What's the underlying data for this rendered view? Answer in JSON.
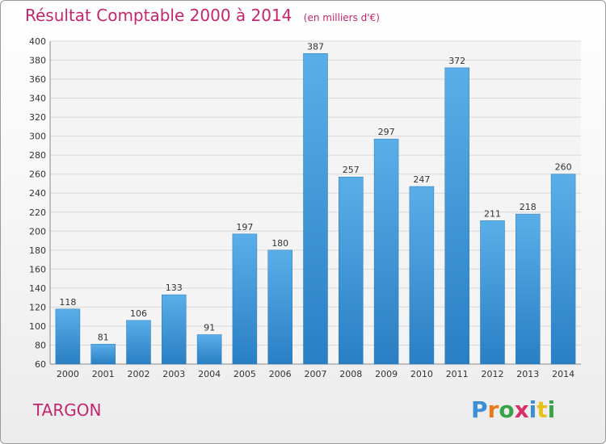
{
  "title": "Résultat Comptable 2000 à 2014",
  "subtitle": "(en milliers d'€)",
  "commune": "TARGON",
  "logo": {
    "letters": [
      "P",
      "r",
      "o",
      "x",
      "i",
      "t",
      "i"
    ],
    "colors": [
      "#3a8fd6",
      "#e87a1c",
      "#3aa34a",
      "#d62f6a",
      "#3a8fd6",
      "#e8c21c",
      "#3aa34a"
    ]
  },
  "chart_data": {
    "type": "bar",
    "categories": [
      "2000",
      "2001",
      "2002",
      "2003",
      "2004",
      "2005",
      "2006",
      "2007",
      "2008",
      "2009",
      "2010",
      "2011",
      "2012",
      "2013",
      "2014"
    ],
    "values": [
      118,
      81,
      106,
      133,
      91,
      197,
      180,
      387,
      257,
      297,
      247,
      372,
      211,
      218,
      260
    ],
    "ylim": [
      60,
      400
    ],
    "yticks": [
      60,
      80,
      100,
      120,
      140,
      160,
      180,
      200,
      220,
      240,
      260,
      280,
      300,
      320,
      340,
      360,
      380,
      400
    ],
    "grid": true,
    "colors": {
      "bar_light": "#5aaee8",
      "bar_dark": "#2a7fc4",
      "grid": "#d8d8d8",
      "text": "#333333"
    }
  }
}
